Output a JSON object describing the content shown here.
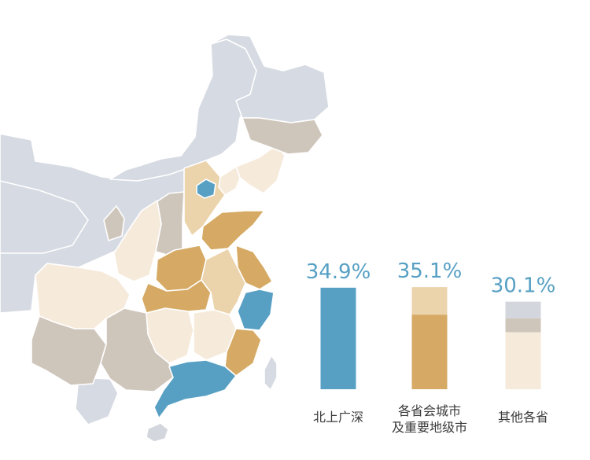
{
  "colors": {
    "tier1": "#57a0c4",
    "provincial": "#d6aa64",
    "provincial_light": "#ebd3ab",
    "other_light": "#f6eadb",
    "other_mid": "#cfc6bb",
    "other_dark": "#d3d6dd",
    "background_region": "#d6dae2"
  },
  "chart_data": {
    "type": "bar",
    "categories": [
      {
        "lines": [
          "北上广深"
        ]
      },
      {
        "lines": [
          "各省会城市",
          "及重要地级市"
        ]
      },
      {
        "lines": [
          "其他各省"
        ]
      }
    ],
    "values": [
      34.9,
      35.1,
      30.1
    ],
    "value_labels": [
      "34.9%",
      "35.1%",
      "30.1%"
    ],
    "title": "",
    "xlabel": "",
    "ylabel": "",
    "ylim": [
      0,
      40
    ],
    "grid": false,
    "legend": "none",
    "bar_segments": [
      [
        {
          "share": 1.0,
          "color": "#57a0c4"
        }
      ],
      [
        {
          "share": 0.27,
          "color": "#ebd3ab"
        },
        {
          "share": 0.73,
          "color": "#d6aa64"
        }
      ],
      [
        {
          "share": 0.19,
          "color": "#d3d6dd"
        },
        {
          "share": 0.16,
          "color": "#cfc6bb"
        },
        {
          "share": 0.65,
          "color": "#f6eadb"
        }
      ]
    ]
  }
}
